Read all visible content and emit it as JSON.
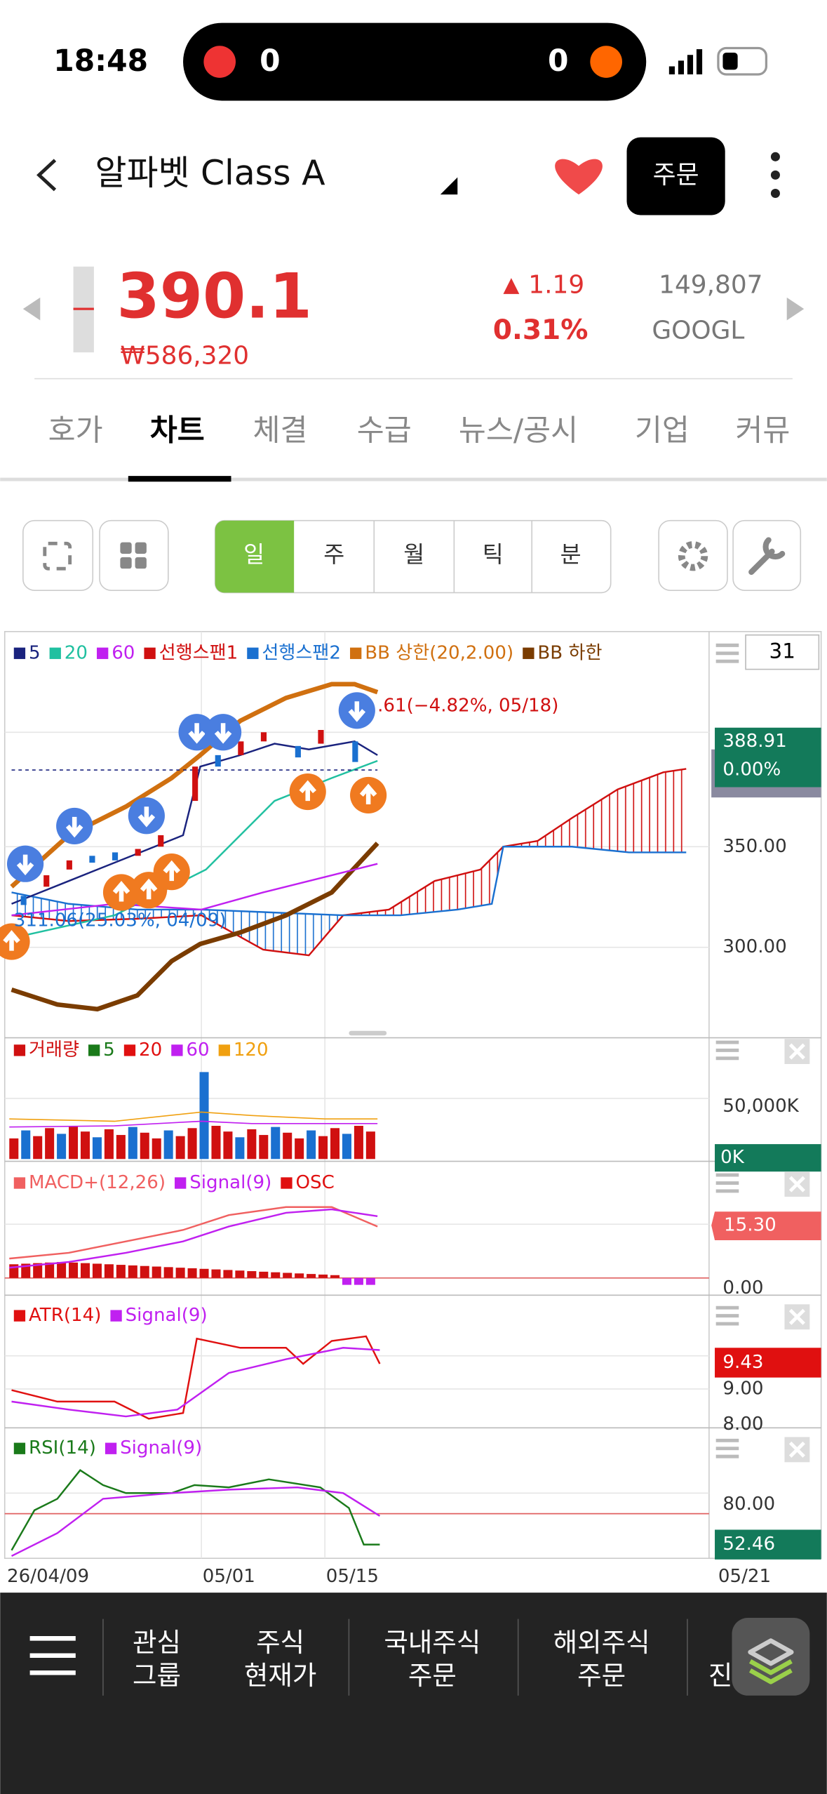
{
  "status_bar": {
    "time": "18:48",
    "home_score": "0",
    "away_score": "0"
  },
  "header": {
    "title": "알파벳 Class A",
    "order_button": "주문"
  },
  "quote": {
    "price": "390.1",
    "price_krw": "₩586,320",
    "change": "1.19",
    "change_percent": "0.31%",
    "volume": "149,807",
    "ticker": "GOOGL"
  },
  "tabs": [
    "호가",
    "차트",
    "체결",
    "수급",
    "뉴스/공시",
    "기업",
    "커뮤"
  ],
  "periods": [
    "일",
    "주",
    "월",
    "틱",
    "분"
  ],
  "chart": {
    "count": "31",
    "legend": [
      {
        "name": "5",
        "color": "#1a237e"
      },
      {
        "name": "20",
        "color": "#20c0a0"
      },
      {
        "name": "60",
        "color": "#c020f0"
      },
      {
        "name": "선행스팬1",
        "color": "#d01010"
      },
      {
        "name": "선행스팬2",
        "color": "#1a70d0"
      },
      {
        "name": "BB 상한(20,2.00)",
        "color": "#d07010"
      },
      {
        "name": "BB 하한",
        "color": "#7a3c00"
      }
    ],
    "annotations": [
      "311.06(25.03%, 04/09)",
      ".61(−4.82%, 05/18)"
    ],
    "price_badge": {
      "value": "388.91",
      "percent": "0.00%"
    },
    "price_labels": [
      "350.00",
      "300.00"
    ],
    "volume": {
      "legend": [
        {
          "name": "거래량",
          "color": "#d01010"
        },
        {
          "name": "5",
          "color": "#1a7a1a"
        },
        {
          "name": "20",
          "color": "#e01010"
        },
        {
          "name": "60",
          "color": "#c020f0"
        },
        {
          "name": "120",
          "color": "#f0a010"
        }
      ],
      "labels": [
        "50,000K"
      ],
      "badge": "0K"
    },
    "macd": {
      "legend": [
        {
          "name": "MACD+(12,26)",
          "color": "#f06060"
        },
        {
          "name": "Signal(9)",
          "color": "#c020f0"
        },
        {
          "name": "OSC",
          "color": "#e01010"
        }
      ],
      "labels": [
        "0.00"
      ],
      "badge": "15.30"
    },
    "atr": {
      "legend": [
        {
          "name": "ATR(14)",
          "color": "#e01010"
        },
        {
          "name": "Signal(9)",
          "color": "#c020f0"
        }
      ],
      "labels": [
        "9.00",
        "8.00"
      ],
      "badge": "9.43"
    },
    "rsi": {
      "legend": [
        {
          "name": "RSI(14)",
          "color": "#1a7a1a"
        },
        {
          "name": "Signal(9)",
          "color": "#c020f0"
        }
      ],
      "labels": [
        "80.00"
      ],
      "badge": "52.46"
    },
    "dates": [
      "26/04/09",
      "05/01",
      "05/15",
      "05/21"
    ]
  },
  "bottom_nav": [
    [
      "관심",
      "그룹"
    ],
    [
      "주식",
      "현재가"
    ],
    [
      "국내주식",
      "주문"
    ],
    [
      "해외주식",
      "주문"
    ],
    [
      "진"
    ]
  ]
}
